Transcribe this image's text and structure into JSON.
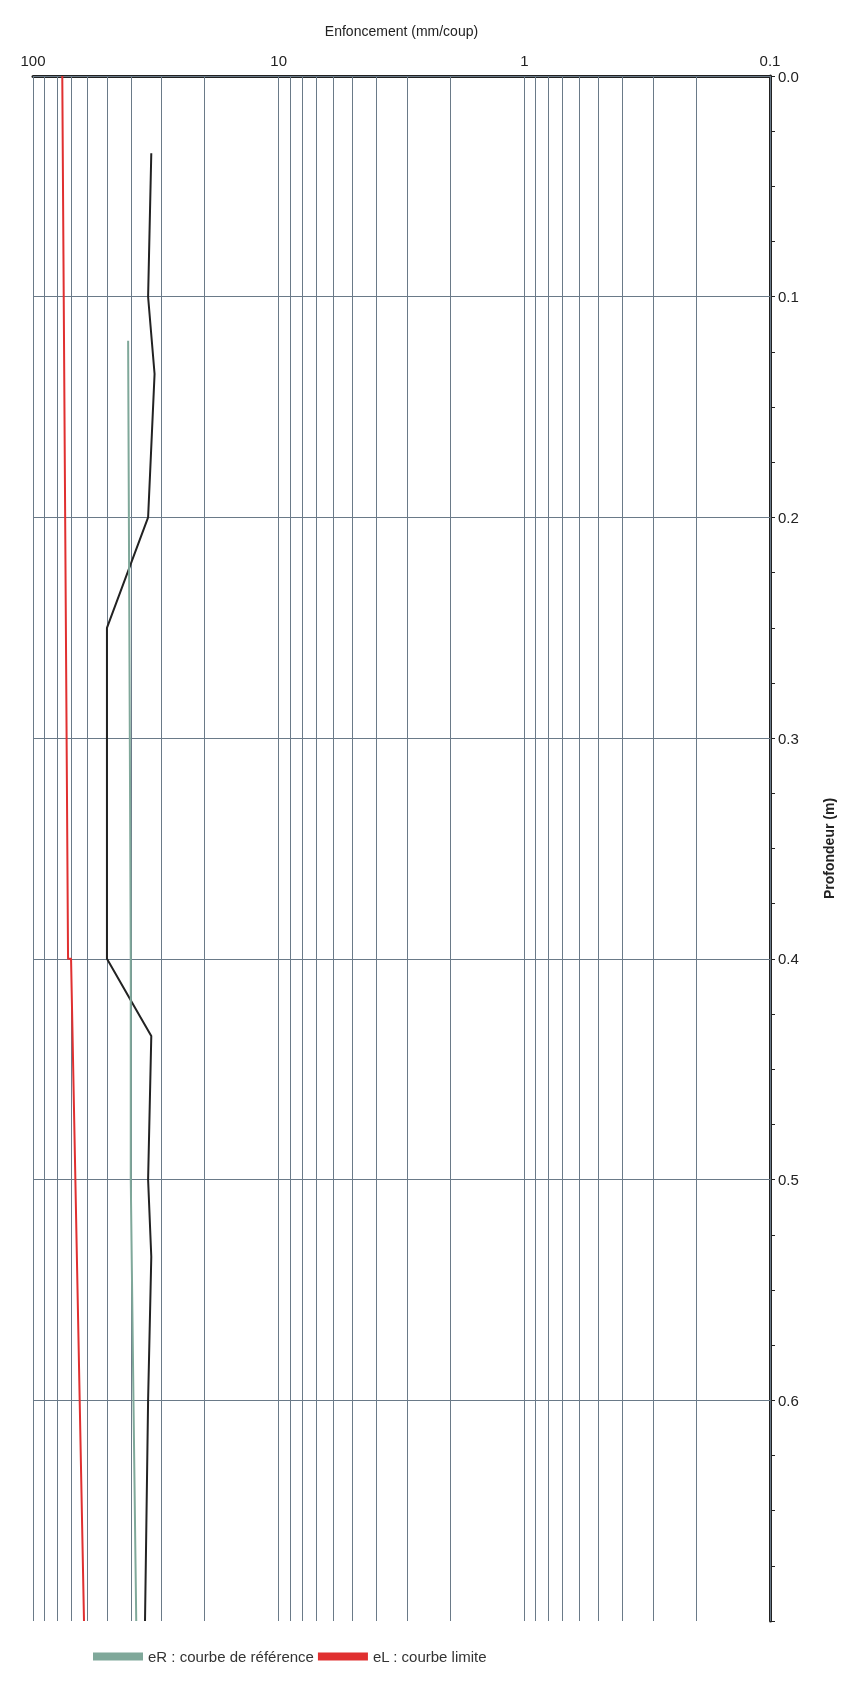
{
  "chart_data": {
    "type": "line",
    "xlabel": "Enfoncement (mm/coup)",
    "ylabel": "Profondeur (m)",
    "log": "x",
    "xlim": [
      100,
      0.1
    ],
    "ylim": [
      0.7,
      0
    ],
    "xticks": [
      100,
      {
        "value": 90,
        "label": null
      },
      {
        "value": 80,
        "label": null
      },
      {
        "value": 70,
        "label": null
      },
      {
        "value": 60,
        "label": null
      },
      {
        "value": 50,
        "label": null
      },
      {
        "value": 40,
        "label": null
      },
      {
        "value": 30,
        "label": null
      },
      {
        "value": 20,
        "label": null
      },
      10,
      {
        "value": 9,
        "label": null
      },
      {
        "value": 8,
        "label": null
      },
      {
        "value": 7,
        "label": null
      },
      {
        "value": 6,
        "label": null
      },
      {
        "value": 5,
        "label": null
      },
      {
        "value": 4,
        "label": null
      },
      {
        "value": 3,
        "label": null
      },
      {
        "value": 2,
        "label": null
      },
      1,
      {
        "value": 0.9,
        "label": null
      },
      {
        "value": 0.8,
        "label": null
      },
      {
        "value": 0.7,
        "label": null
      },
      {
        "value": 0.6,
        "label": null
      },
      {
        "value": 0.5,
        "label": null
      },
      {
        "value": 0.4,
        "label": null
      },
      {
        "value": 0.3,
        "label": null
      },
      {
        "value": 0.2,
        "label": null
      },
      0.1
    ],
    "yticks": [
      {
        "value": 0,
        "label": "0.0"
      },
      {
        "value": 0.025,
        "label": null
      },
      {
        "value": 0.05,
        "label": null
      },
      {
        "value": 0.075,
        "label": null
      },
      0.1,
      {
        "value": 0.125,
        "label": null
      },
      {
        "value": 0.15,
        "label": null
      },
      {
        "value": 0.175,
        "label": null
      },
      0.2,
      {
        "value": 0.225,
        "label": null
      },
      {
        "value": 0.25,
        "label": null
      },
      {
        "value": 0.275,
        "label": null
      },
      0.3,
      {
        "value": 0.325,
        "label": null
      },
      {
        "value": 0.35,
        "label": null
      },
      {
        "value": 0.375,
        "label": null
      },
      0.4,
      {
        "value": 0.425,
        "label": null
      },
      {
        "value": 0.45,
        "label": null
      },
      {
        "value": 0.475,
        "label": null
      },
      0.5,
      {
        "value": 0.525,
        "label": null
      },
      {
        "value": 0.55,
        "label": null
      },
      {
        "value": 0.575,
        "label": null
      },
      0.6,
      {
        "value": 0.625,
        "label": null
      },
      {
        "value": 0.65,
        "label": null
      },
      {
        "value": 0.675,
        "label": null
      },
      {
        "value": 0.7,
        "label": null
      }
    ],
    "grid": true,
    "legend": "bottom left",
    "marker": "none",
    "line_style": "solid",
    "series": [
      {
        "color": "#222222",
        "x": [
          33,
          34,
          32,
          34,
          50,
          50,
          33,
          34,
          33,
          34,
          35
        ],
        "values": [
          0.035,
          0.1,
          0.135,
          0.2,
          0.25,
          0.4,
          0.435,
          0.5,
          0.535,
          0.6,
          0.7
        ]
      },
      {
        "name": "eR : courbe de référence",
        "color": "#7fa89a",
        "x": [
          41,
          40,
          40,
          39,
          38
        ],
        "values": [
          0.12,
          0.4,
          0.5,
          0.6,
          0.7
        ]
      },
      {
        "name": "eL : courbe limite",
        "color": "#e03030",
        "x": [
          76,
          72,
          70,
          62
        ],
        "values": [
          0,
          0.4,
          0.4,
          0.7
        ]
      }
    ]
  }
}
